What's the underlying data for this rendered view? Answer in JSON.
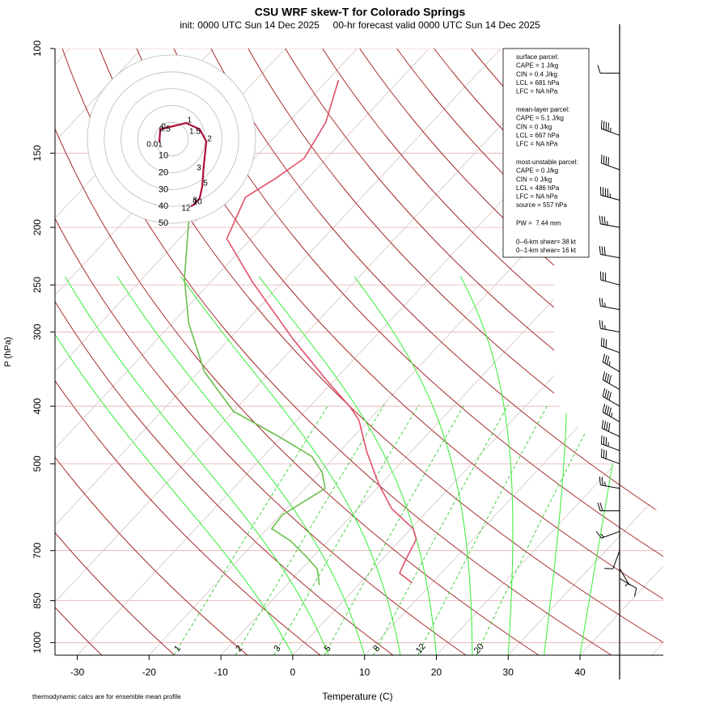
{
  "chart_data": {
    "type": "skew-t",
    "title": "CSU WRF skew-T for Colorado Springs",
    "subtitle": "init: 0000 UTC Sun 14 Dec 2025     00-hr forecast valid 0000 UTC Sun 14 Dec 2025",
    "x_label": "Temperature (C)",
    "y_label": "P (hPa)",
    "footnote": "thermodynamic calcs are for ensemble mean profile",
    "xlim": [
      -33.1,
      51.6
    ],
    "ylim": [
      1050,
      100
    ],
    "log_y": true,
    "xticks": [
      -30,
      -20,
      -10,
      0,
      10,
      20,
      30,
      40
    ],
    "yticks": [
      100,
      150,
      200,
      250,
      300,
      400,
      500,
      700,
      850,
      1000
    ],
    "isotherms": [
      -110,
      -100,
      -90,
      -80,
      -70,
      -60,
      -50,
      -40,
      -30,
      -20,
      -10,
      0,
      10,
      20,
      30,
      40,
      50
    ],
    "isotherm_color": "#a52a2a",
    "dry_adiabats": [
      -30,
      -20,
      -10,
      0,
      10,
      20,
      30,
      40,
      50,
      60,
      70,
      80,
      90,
      100,
      110,
      120,
      130,
      140,
      150,
      160,
      170,
      180,
      190
    ],
    "dry_adiabat_color": "#a52a2a",
    "moist_adiabats": [
      0,
      5,
      10,
      15,
      20,
      25,
      30,
      35,
      40
    ],
    "moist_adiabat_color": "#33ee33",
    "mixing_ratios": [
      1,
      2,
      3,
      5,
      8,
      12,
      20
    ],
    "mixing_ratio_color": "#33cc33",
    "temperature": {
      "color": "#e0506a",
      "pressure": [
        793,
        764,
        730,
        670,
        643,
        595,
        542,
        478,
        422,
        402,
        361,
        309,
        248,
        209,
        178,
        165,
        153,
        133,
        113
      ],
      "values": [
        7.2,
        4.2,
        3.4,
        2.1,
        0.3,
        -5.3,
        -10.2,
        -16.1,
        -21.4,
        -24.2,
        -31.2,
        -41.0,
        -54.0,
        -63.4,
        -66.2,
        -64.4,
        -63.1,
        -64.8,
        -68.5
      ]
    },
    "dewpoint": {
      "color": "#6abf4b",
      "pressure": [
        800,
        752,
        718,
        674,
        643,
        610,
        550,
        517,
        486,
        449,
        408,
        350,
        290,
        244,
        199,
        181
      ],
      "values": [
        -5.4,
        -7.8,
        -10.8,
        -15.2,
        -19.4,
        -19.7,
        -17.2,
        -19.7,
        -23.2,
        -30.6,
        -40.0,
        -49.2,
        -57.7,
        -64.1,
        -70.4,
        -73.3
      ]
    },
    "wind_barbs": {
      "pressure": [
        110,
        140,
        160,
        180,
        200,
        225,
        250,
        275,
        300,
        325,
        350,
        375,
        400,
        425,
        450,
        475,
        500,
        550,
        600,
        650,
        700,
        750,
        780
      ],
      "speed": [
        10,
        45,
        40,
        45,
        35,
        30,
        30,
        25,
        25,
        30,
        35,
        40,
        40,
        45,
        40,
        35,
        30,
        25,
        20,
        15,
        10,
        5,
        10
      ],
      "direction": [
        270,
        290,
        290,
        285,
        280,
        280,
        285,
        280,
        280,
        290,
        300,
        300,
        300,
        300,
        295,
        290,
        290,
        280,
        270,
        250,
        200,
        150,
        120
      ]
    },
    "hodograph": {
      "rings": [
        10,
        20,
        30,
        40,
        50
      ],
      "u": [
        -7.2,
        -6.7,
        -1,
        8.7,
        16.8,
        20.7,
        19.2,
        18.3,
        16.8,
        13.5,
        11.5
      ],
      "v": [
        -1.9,
        5.8,
        7.2,
        9.6,
        5.8,
        -1.4,
        -15.9,
        -27.9,
        -35.1,
        -38.9,
        -39.9
      ],
      "labels": [
        "0.01",
        "0",
        "0.5",
        "1",
        "1.5",
        "2",
        "3",
        "5",
        "8",
        "10",
        "12"
      ],
      "color": "#b0103a",
      "label_color": "#cc00cc"
    },
    "info_box": [
      [
        "surface parcel:",
        "CAPE = 1 J/kg",
        "CIN = 0.4 J/kg",
        "LCL = 681 hPa",
        "LFC = NA hPa"
      ],
      [
        "mean-layer parcel:",
        "CAPE = 5.1 J/kg",
        "CIN = 0 J/kg",
        "LCL = 667 hPa",
        "LFC = NA hPa"
      ],
      [
        "most-unstable parcel:",
        "CAPE = 0 J/kg",
        "CIN = 0 J/kg",
        "LCL = 486 hPa",
        "LFC = NA hPa",
        "source = 557 hPa"
      ],
      [
        "PW =  7.44 mm"
      ],
      [
        "0--6-km shear= 38 kt",
        "0--1-km shear= 16 kt"
      ]
    ]
  }
}
